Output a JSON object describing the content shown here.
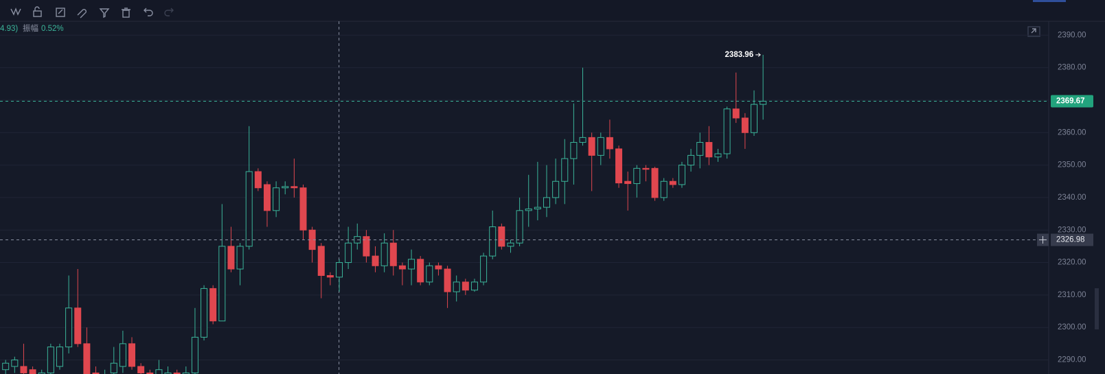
{
  "header": {
    "change_fragment": "4.93)",
    "amplitude_label": "振幅",
    "amplitude_value": "0.52%"
  },
  "chart_data": {
    "type": "candlestick",
    "up_color": "#3bb59a",
    "down_color": "#e0474f",
    "open": [
      2287,
      2288,
      2288,
      2287,
      2285,
      2286,
      2288,
      2294,
      2306,
      2295,
      2286,
      2282,
      2286,
      2288,
      2295,
      2288,
      2286,
      2284,
      2285,
      2286,
      2284,
      2286,
      2297,
      2312,
      2302,
      2325,
      2318,
      2325,
      2348,
      2344,
      2336,
      2343,
      2343.4,
      2343,
      2330,
      2325,
      2316,
      2315.5,
      2320,
      2326,
      2328,
      2322,
      2319,
      2326,
      2319,
      2318,
      2321,
      2314,
      2319,
      2318,
      2311,
      2314,
      2311.5,
      2314,
      2322,
      2331,
      2325,
      2326,
      2336,
      2336.5,
      2337,
      2340,
      2345,
      2352,
      2357,
      2358.5,
      2353,
      2358.5,
      2355,
      2345,
      2344.3,
      2349,
      2349,
      2340,
      2345,
      2344,
      2350,
      2353,
      2357,
      2352.5,
      2353.5,
      2367.3,
      2364.5,
      2360,
      2368.7
    ],
    "high": [
      2290,
      2291,
      2295,
      2288,
      2287,
      2295,
      2295,
      2316,
      2318,
      2300,
      2288,
      2287,
      2294,
      2299,
      2297,
      2289,
      2287,
      2290,
      2288,
      2287,
      2288,
      2306,
      2313,
      2313,
      2338,
      2331,
      2326,
      2362,
      2349,
      2345,
      2345,
      2345,
      2352,
      2344,
      2331,
      2326,
      2317,
      2321,
      2331,
      2332,
      2330,
      2325,
      2329,
      2330,
      2320,
      2324,
      2322,
      2320,
      2320,
      2319,
      2316,
      2315,
      2315,
      2323,
      2336,
      2332,
      2327,
      2340,
      2347,
      2351,
      2350,
      2352,
      2358,
      2369,
      2380,
      2360,
      2360,
      2364,
      2356,
      2348,
      2350,
      2350,
      2349.5,
      2346,
      2346,
      2351,
      2355,
      2360,
      2362,
      2355,
      2368,
      2378.5,
      2366,
      2373,
      2383.96
    ],
    "low": [
      2285,
      2286,
      2284,
      2283,
      2283,
      2284,
      2287,
      2292,
      2294,
      2283,
      2280,
      2280,
      2285,
      2286,
      2287,
      2284,
      2282,
      2283,
      2283,
      2282,
      2283,
      2285,
      2296,
      2301,
      2302,
      2317,
      2313,
      2324,
      2342,
      2331,
      2334,
      2341,
      2340,
      2327,
      2320,
      2309,
      2313,
      2311,
      2318,
      2324,
      2320,
      2317,
      2317,
      2316,
      2313,
      2313,
      2313,
      2313,
      2316,
      2306,
      2308,
      2310,
      2311,
      2313,
      2321,
      2324,
      2323,
      2325,
      2331,
      2333,
      2334,
      2338,
      2338,
      2344,
      2356,
      2342,
      2350,
      2352,
      2343,
      2336,
      2340,
      2345,
      2339,
      2339,
      2343,
      2343,
      2348,
      2349,
      2350,
      2351,
      2352,
      2363,
      2355,
      2359,
      2364
    ],
    "close": [
      2289,
      2290,
      2286,
      2285,
      2286,
      2294,
      2294,
      2306,
      2295,
      2285,
      2282,
      2285,
      2289,
      2295,
      2288,
      2286,
      2284,
      2287,
      2286,
      2284,
      2286,
      2297,
      2312,
      2302,
      2325,
      2318,
      2325,
      2348,
      2343,
      2336,
      2343,
      2343.4,
      2343,
      2330,
      2324,
      2316,
      2315.5,
      2320,
      2326,
      2328,
      2322,
      2319,
      2326,
      2319,
      2318,
      2321,
      2314,
      2319,
      2318,
      2311,
      2314,
      2311.5,
      2314,
      2322,
      2331,
      2325,
      2326,
      2336,
      2336.5,
      2337,
      2340,
      2345,
      2352,
      2357,
      2358.5,
      2353,
      2358.5,
      2355,
      2344.5,
      2344.3,
      2349,
      2348.7,
      2340,
      2345,
      2344,
      2350,
      2353,
      2357,
      2352.5,
      2353.5,
      2367.3,
      2364.5,
      2360,
      2368.7,
      2369.67
    ],
    "ylim": [
      2285.67,
      2394.29
    ],
    "yticks": [
      {
        "value": 2290,
        "label": "2290.00"
      },
      {
        "value": 2300,
        "label": "2300.00"
      },
      {
        "value": 2310,
        "label": "2310.00"
      },
      {
        "value": 2320,
        "label": "2320.00"
      },
      {
        "value": 2330,
        "label": "2330.00"
      },
      {
        "value": 2340,
        "label": "2340.00"
      },
      {
        "value": 2350,
        "label": "2350.00"
      },
      {
        "value": 2360,
        "label": "2360.00"
      },
      {
        "value": 2370,
        "label": "2370.00"
      },
      {
        "value": 2380,
        "label": "2380.00"
      },
      {
        "value": 2390,
        "label": "2390.00"
      }
    ],
    "grid": true,
    "last_price": 2369.67,
    "crosshair_price": 2326.98,
    "max_label": 2383.96
  }
}
